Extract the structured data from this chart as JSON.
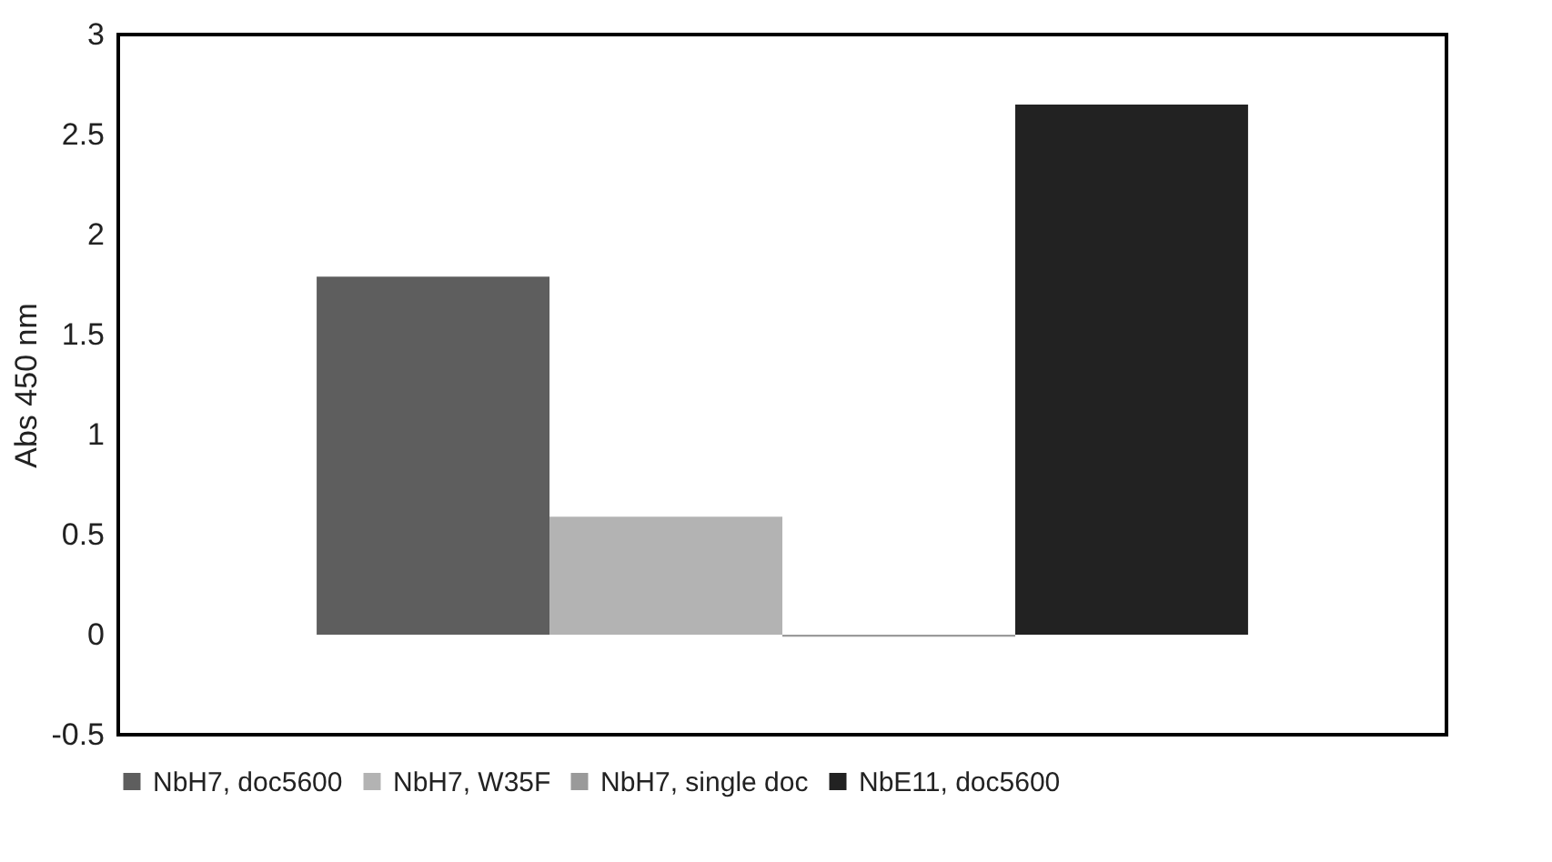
{
  "chart_data": {
    "type": "bar",
    "ylabel": "Abs 450 nm",
    "categories": [
      null
    ],
    "series": [
      {
        "name": "NbH7, doc5600",
        "color": "#5e5e5e",
        "values": [
          1.79
        ]
      },
      {
        "name": "NbH7, W35F",
        "color": "#b3b3b3",
        "values": [
          0.59
        ]
      },
      {
        "name": "NbH7, single doc",
        "color": "#9a9a9a",
        "values": [
          -0.01
        ]
      },
      {
        "name": "NbE11, doc5600",
        "color": "#222222",
        "values": [
          2.65
        ]
      }
    ],
    "ylim": [
      -0.5,
      3
    ],
    "yticks": [
      -0.5,
      0,
      0.5,
      1,
      1.5,
      2,
      2.5,
      3
    ],
    "grid": false,
    "legend": "bottom",
    "tick_labels": "y"
  }
}
